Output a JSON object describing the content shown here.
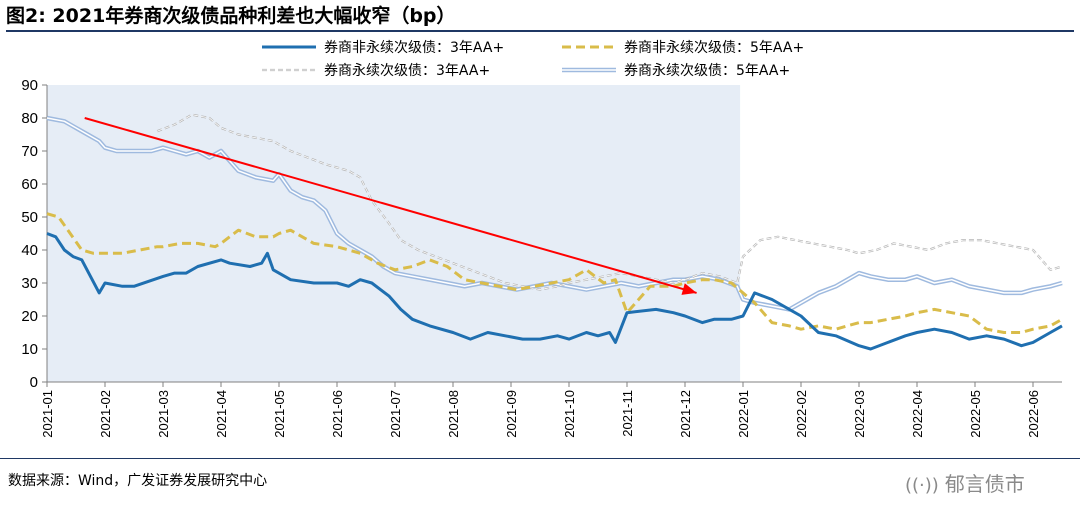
{
  "title": "图2:  2021年券商次级债品种利差也大幅收窄（bp）",
  "source": "数据来源：Wind，广发证券发展研究中心",
  "watermark": {
    "logo": "((·))",
    "text": "郁言债市"
  },
  "colors": {
    "s1": "#1f6fb0",
    "s2": "#d9bc4a",
    "s3": "#b4b4b4",
    "s4": "#9fbadf",
    "shade": "#e6edf6",
    "arrow": "#ff0000"
  },
  "chart_data": {
    "type": "line",
    "title": "2021年券商次级债品种利差也大幅收窄（bp）",
    "ylim": [
      0,
      90
    ],
    "yticks": [
      0,
      10,
      20,
      30,
      40,
      50,
      60,
      70,
      80,
      90
    ],
    "xticks": [
      "2021-01",
      "2021-02",
      "2021-03",
      "2021-04",
      "2021-05",
      "2021-06",
      "2021-07",
      "2021-08",
      "2021-09",
      "2021-10",
      "2021-11",
      "2021-12",
      "2022-01",
      "2022-02",
      "2022-03",
      "2022-04",
      "2022-05",
      "2022-06"
    ],
    "shaded_range": [
      0,
      11.95
    ],
    "annotation_arrow": {
      "from": [
        0.65,
        80
      ],
      "to": [
        11.2,
        27
      ]
    },
    "series": [
      {
        "name": "券商非永续次级债：3年AA+",
        "style": "solid",
        "x": [
          0,
          0.15,
          0.3,
          0.45,
          0.6,
          0.9,
          1.0,
          1.3,
          1.5,
          2.0,
          2.2,
          2.4,
          2.6,
          3.0,
          3.15,
          3.5,
          3.7,
          3.8,
          3.9,
          4.2,
          4.6,
          5.0,
          5.2,
          5.4,
          5.6,
          5.9,
          6.1,
          6.3,
          6.6,
          7.0,
          7.3,
          7.6,
          7.9,
          8.2,
          8.5,
          8.8,
          9.0,
          9.3,
          9.5,
          9.7,
          9.8,
          10.0,
          10.5,
          10.8,
          11.0,
          11.3,
          11.5,
          11.8,
          12.0,
          12.2,
          12.5,
          12.8,
          13.0,
          13.3,
          13.6,
          14.0,
          14.2,
          14.5,
          14.8,
          15.0,
          15.3,
          15.6,
          15.9,
          16.2,
          16.5,
          16.8,
          17.0,
          17.3,
          17.5
        ],
        "y": [
          45,
          44,
          40,
          38,
          37,
          27,
          30,
          29,
          29,
          32,
          33,
          33,
          35,
          37,
          36,
          35,
          36,
          39,
          34,
          31,
          30,
          30,
          29,
          31,
          30,
          26,
          22,
          19,
          17,
          15,
          13,
          15,
          14,
          13,
          13,
          14,
          13,
          15,
          14,
          15,
          12,
          21,
          22,
          21,
          20,
          18,
          19,
          19,
          20,
          27,
          25,
          22,
          20,
          15,
          14,
          11,
          10,
          12,
          14,
          15,
          16,
          15,
          13,
          14,
          13,
          11,
          12,
          15,
          17
        ]
      },
      {
        "name": "券商非永续次级债：5年AA+",
        "style": "dash",
        "x": [
          0,
          0.2,
          0.6,
          0.8,
          1.0,
          1.3,
          1.6,
          1.9,
          2.0,
          2.3,
          2.6,
          2.9,
          3.0,
          3.3,
          3.6,
          3.9,
          4.0,
          4.2,
          4.6,
          5.0,
          5.2,
          5.4,
          5.7,
          6.0,
          6.3,
          6.6,
          6.9,
          7.2,
          7.5,
          7.8,
          8.1,
          8.4,
          8.7,
          9.0,
          9.3,
          9.6,
          9.8,
          10.0,
          10.4,
          10.8,
          11.0,
          11.3,
          11.5,
          11.8,
          12.0,
          12.2,
          12.5,
          12.8,
          13.0,
          13.3,
          13.6,
          14.0,
          14.2,
          14.5,
          14.8,
          15.0,
          15.3,
          15.6,
          15.9,
          16.2,
          16.5,
          16.8,
          17.0,
          17.3,
          17.5
        ],
        "y": [
          51,
          50,
          40,
          39,
          39,
          39,
          40,
          41,
          41,
          42,
          42,
          41,
          42,
          46,
          44,
          44,
          45,
          46,
          42,
          41,
          40,
          39,
          36,
          34,
          35,
          37,
          35,
          31,
          30,
          29,
          28,
          29,
          30,
          31,
          34,
          30,
          31,
          21,
          29,
          29,
          30,
          31,
          31,
          30,
          27,
          24,
          18,
          17,
          16,
          17,
          16,
          18,
          18,
          19,
          20,
          21,
          22,
          21,
          20,
          16,
          15,
          15,
          16,
          17,
          19
        ]
      },
      {
        "name": "券商永续次级债：3年AA+",
        "style": "dash",
        "x": [
          1.9,
          2.2,
          2.5,
          2.8,
          3.0,
          3.3,
          3.6,
          3.9,
          4.0,
          4.2,
          4.5,
          4.8,
          5.0,
          5.2,
          5.4,
          5.6,
          5.9,
          6.1,
          6.4,
          6.7,
          7.0,
          7.3,
          7.6,
          7.9,
          8.2,
          8.5,
          8.8,
          9.0,
          9.3,
          9.6,
          9.9,
          10.2,
          10.5,
          10.8,
          11.0,
          11.3,
          11.6,
          11.9,
          12.0,
          12.3,
          12.6,
          12.9,
          13.2,
          13.5,
          13.8,
          14.0,
          14.3,
          14.6,
          14.9,
          15.2,
          15.5,
          15.8,
          16.1,
          16.4,
          16.7,
          17.0,
          17.3,
          17.5
        ],
        "y": [
          76,
          78,
          81,
          80,
          77,
          75,
          74,
          73,
          72,
          70,
          68,
          66,
          65,
          64,
          62,
          55,
          48,
          43,
          40,
          38,
          36,
          34,
          32,
          30,
          29,
          28,
          29,
          30,
          31,
          32,
          33,
          32,
          31,
          30,
          31,
          33,
          32,
          30,
          38,
          43,
          44,
          43,
          42,
          41,
          40,
          39,
          40,
          42,
          41,
          40,
          42,
          43,
          43,
          42,
          41,
          40,
          34,
          35
        ]
      },
      {
        "name": "券商永续次级债：5年AA+",
        "style": "double",
        "x": [
          0,
          0.3,
          0.5,
          0.7,
          0.9,
          1.0,
          1.2,
          1.5,
          1.8,
          2.0,
          2.2,
          2.4,
          2.6,
          2.8,
          3.0,
          3.3,
          3.6,
          3.9,
          4.0,
          4.2,
          4.4,
          4.6,
          4.8,
          5.0,
          5.2,
          5.4,
          5.6,
          5.8,
          6.0,
          6.3,
          6.6,
          6.9,
          7.2,
          7.5,
          7.8,
          8.1,
          8.4,
          8.7,
          9.0,
          9.3,
          9.6,
          9.9,
          10.2,
          10.5,
          10.8,
          11.0,
          11.3,
          11.6,
          11.9,
          12.0,
          12.2,
          12.5,
          12.8,
          13.0,
          13.3,
          13.6,
          14.0,
          14.2,
          14.5,
          14.8,
          15.0,
          15.3,
          15.6,
          15.9,
          16.2,
          16.5,
          16.8,
          17.0,
          17.3,
          17.5
        ],
        "y": [
          80,
          79,
          77,
          75,
          73,
          71,
          70,
          70,
          70,
          71,
          70,
          69,
          70,
          68,
          70,
          64,
          62,
          61,
          63,
          58,
          56,
          55,
          52,
          45,
          42,
          40,
          38,
          35,
          33,
          32,
          31,
          30,
          29,
          30,
          29,
          28,
          29,
          30,
          29,
          28,
          29,
          30,
          29,
          30,
          31,
          31,
          32,
          31,
          29,
          25,
          24,
          23,
          22,
          24,
          27,
          29,
          33,
          32,
          31,
          31,
          32,
          30,
          31,
          29,
          28,
          27,
          27,
          28,
          29,
          30
        ]
      }
    ]
  }
}
